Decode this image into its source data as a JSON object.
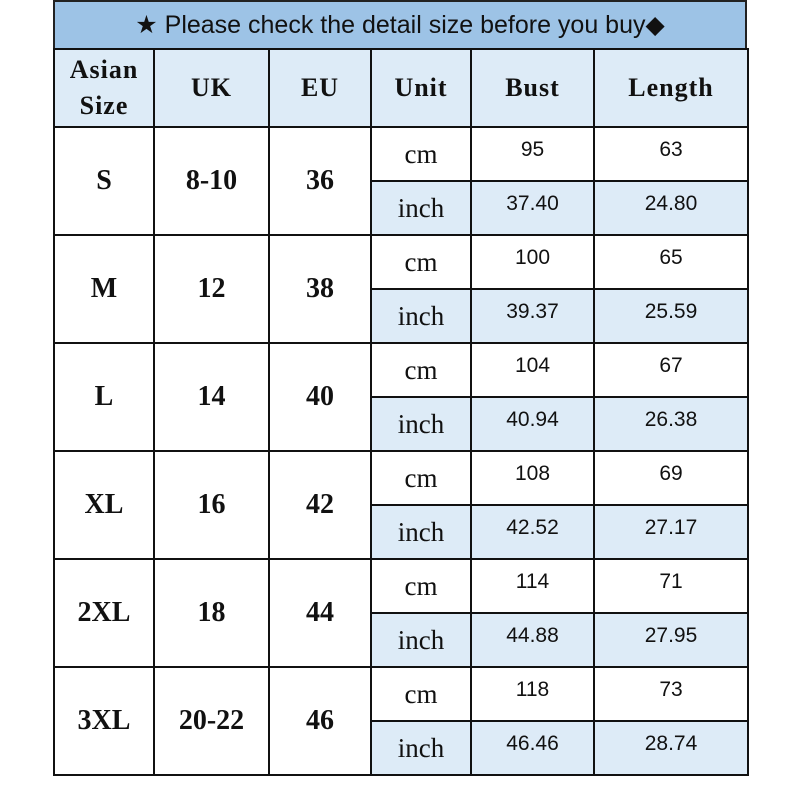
{
  "title": "★ Please check the detail size before you buy◆",
  "headers": [
    "Asian Size",
    "UK",
    "EU",
    "Unit",
    "Bust",
    "Length"
  ],
  "colors": {
    "title_bg": "#9dc3e6",
    "header_bg": "#ddebf7",
    "inch_row_bg": "#ddebf7"
  },
  "rows": [
    {
      "asian": "S",
      "uk": "8-10",
      "eu": "36",
      "cm": {
        "unit": "cm",
        "bust": "95",
        "length": "63"
      },
      "inch": {
        "unit": "inch",
        "bust": "37.40",
        "length": "24.80"
      }
    },
    {
      "asian": "M",
      "uk": "12",
      "eu": "38",
      "cm": {
        "unit": "cm",
        "bust": "100",
        "length": "65"
      },
      "inch": {
        "unit": "inch",
        "bust": "39.37",
        "length": "25.59"
      }
    },
    {
      "asian": "L",
      "uk": "14",
      "eu": "40",
      "cm": {
        "unit": "cm",
        "bust": "104",
        "length": "67"
      },
      "inch": {
        "unit": "inch",
        "bust": "40.94",
        "length": "26.38"
      }
    },
    {
      "asian": "XL",
      "uk": "16",
      "eu": "42",
      "cm": {
        "unit": "cm",
        "bust": "108",
        "length": "69"
      },
      "inch": {
        "unit": "inch",
        "bust": "42.52",
        "length": "27.17"
      }
    },
    {
      "asian": "2XL",
      "uk": "18",
      "eu": "44",
      "cm": {
        "unit": "cm",
        "bust": "114",
        "length": "71"
      },
      "inch": {
        "unit": "inch",
        "bust": "44.88",
        "length": "27.95"
      }
    },
    {
      "asian": "3XL",
      "uk": "20-22",
      "eu": "46",
      "cm": {
        "unit": "cm",
        "bust": "118",
        "length": "73"
      },
      "inch": {
        "unit": "inch",
        "bust": "46.46",
        "length": "28.74"
      }
    }
  ]
}
